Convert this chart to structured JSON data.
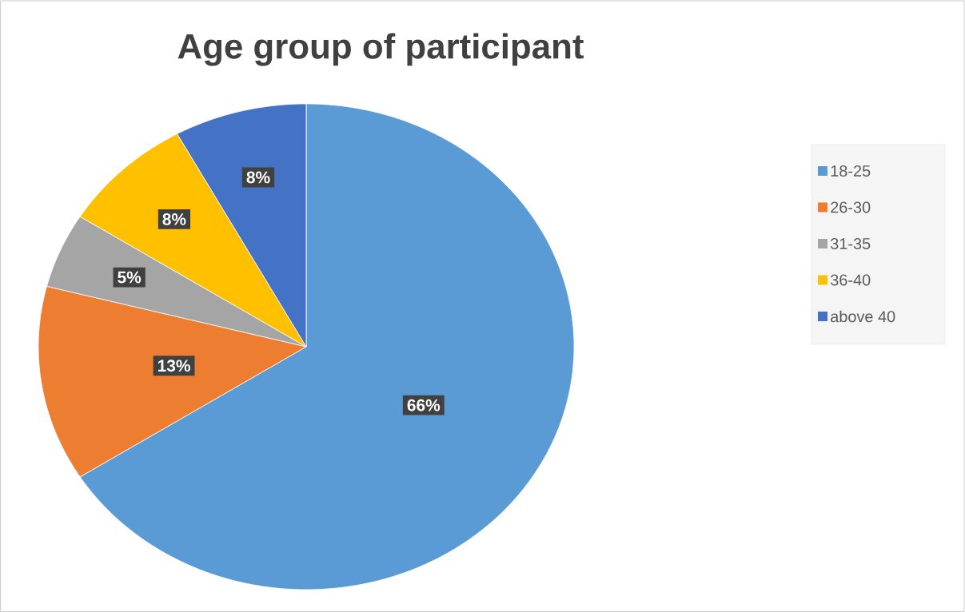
{
  "chart_data": {
    "type": "pie",
    "title": "Age group of participant",
    "categories": [
      "18-25",
      "26-30",
      "31-35",
      "36-40",
      "above 40"
    ],
    "values": [
      66,
      13,
      5,
      8,
      8
    ],
    "colors": [
      "#5b9bd5",
      "#ed7d31",
      "#a5a5a5",
      "#ffc000",
      "#4472c4"
    ],
    "value_labels": [
      "66%",
      "13%",
      "5%",
      "8%",
      "8%"
    ],
    "legend": "right"
  }
}
